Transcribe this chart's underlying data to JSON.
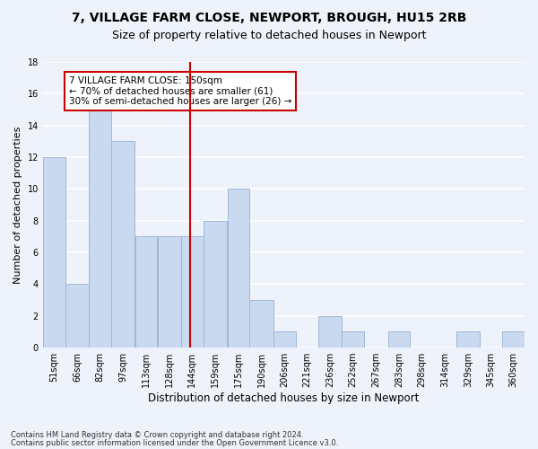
{
  "title": "7, VILLAGE FARM CLOSE, NEWPORT, BROUGH, HU15 2RB",
  "subtitle": "Size of property relative to detached houses in Newport",
  "xlabel": "Distribution of detached houses by size in Newport",
  "ylabel": "Number of detached properties",
  "bar_color": "#c8d9f0",
  "bar_edge_color": "#a0b8d8",
  "background_color": "#eef2fa",
  "grid_color": "#ffffff",
  "bin_labels": [
    "51sqm",
    "66sqm",
    "82sqm",
    "97sqm",
    "113sqm",
    "128sqm",
    "144sqm",
    "159sqm",
    "175sqm",
    "190sqm",
    "206sqm",
    "221sqm",
    "236sqm",
    "252sqm",
    "267sqm",
    "283sqm",
    "298sqm",
    "314sqm",
    "329sqm",
    "345sqm",
    "360sqm"
  ],
  "bar_heights": [
    12,
    4,
    15,
    13,
    7,
    7,
    7,
    8,
    10,
    3,
    1,
    0,
    2,
    1,
    0,
    1,
    0,
    0,
    1,
    0,
    1
  ],
  "bin_edges": [
    51,
    66,
    82,
    97,
    113,
    128,
    144,
    159,
    175,
    190,
    206,
    221,
    236,
    252,
    267,
    283,
    298,
    314,
    329,
    345,
    360,
    375
  ],
  "vline_x": 150,
  "vline_color": "#cc0000",
  "ylim": [
    0,
    18
  ],
  "yticks": [
    0,
    2,
    4,
    6,
    8,
    10,
    12,
    14,
    16,
    18
  ],
  "annotation_title": "7 VILLAGE FARM CLOSE: 150sqm",
  "annotation_line1": "← 70% of detached houses are smaller (61)",
  "annotation_line2": "30% of semi-detached houses are larger (26) →",
  "annotation_box_color": "#ffffff",
  "annotation_box_edge": "#cc0000",
  "footnote1": "Contains HM Land Registry data © Crown copyright and database right 2024.",
  "footnote2": "Contains public sector information licensed under the Open Government Licence v3.0."
}
